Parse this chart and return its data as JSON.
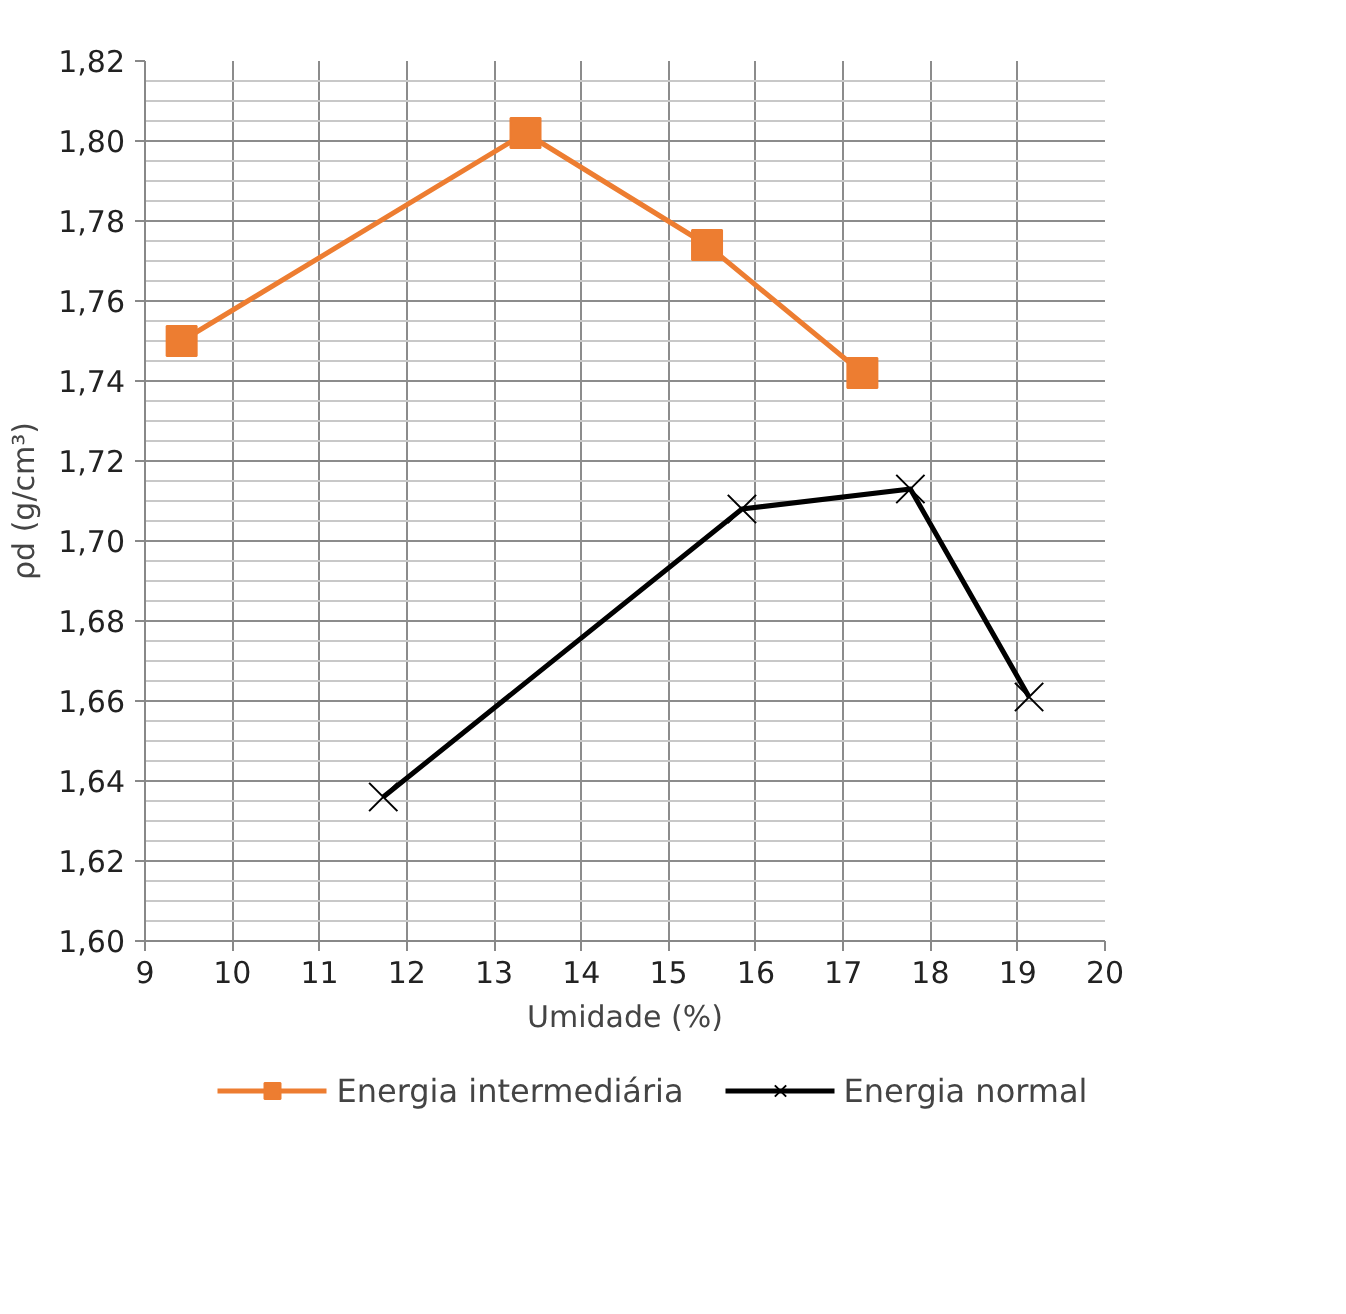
{
  "chart_data": {
    "type": "line",
    "xlabel": "Umidade (%)",
    "ylabel": "ρd (g/cm³)",
    "xlim": [
      9,
      20
    ],
    "xticks": [
      9,
      10,
      11,
      12,
      13,
      14,
      15,
      16,
      17,
      18,
      19,
      20
    ],
    "ylim": [
      1.6,
      1.82
    ],
    "yticks": [
      {
        "value": 1.6,
        "label": "1,60"
      },
      {
        "value": 1.62,
        "label": "1,62"
      },
      {
        "value": 1.64,
        "label": "1,64"
      },
      {
        "value": 1.66,
        "label": "1,66"
      },
      {
        "value": 1.68,
        "label": "1,68"
      },
      {
        "value": 1.7,
        "label": "1,70"
      },
      {
        "value": 1.72,
        "label": "1,72"
      },
      {
        "value": 1.74,
        "label": "1,74"
      },
      {
        "value": 1.76,
        "label": "1,76"
      },
      {
        "value": 1.78,
        "label": "1,78"
      },
      {
        "value": 1.8,
        "label": "1,80"
      },
      {
        "value": 1.82,
        "label": "1,82"
      }
    ],
    "grid": true,
    "legend": "bottom",
    "series": [
      {
        "name": "Energia intermediária",
        "color": "#ed7d31",
        "marker": "square",
        "x": [
          9.42,
          13.36,
          15.44,
          17.22
        ],
        "values": [
          1.75,
          1.802,
          1.774,
          1.742
        ]
      },
      {
        "name": "Energia normal",
        "color": "#000000",
        "marker": "cross",
        "x": [
          11.73,
          15.84,
          17.77,
          19.13
        ],
        "values": [
          1.636,
          1.708,
          1.713,
          1.661
        ]
      }
    ]
  }
}
